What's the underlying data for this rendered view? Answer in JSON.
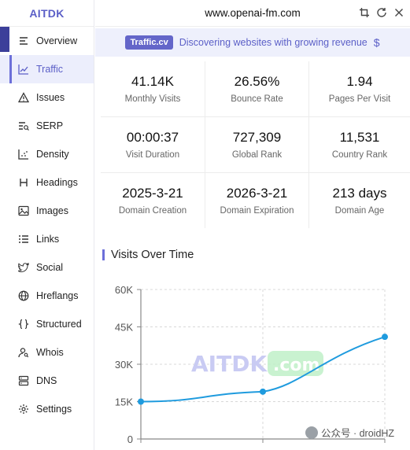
{
  "sidebar": {
    "brand": "AITDK",
    "items": [
      {
        "label": "Overview",
        "icon": "list-icon",
        "active": false
      },
      {
        "label": "Traffic",
        "icon": "chart-line-icon",
        "active": true
      },
      {
        "label": "Issues",
        "icon": "warning-icon",
        "active": false
      },
      {
        "label": "SERP",
        "icon": "serp-list-icon",
        "active": false
      },
      {
        "label": "Density",
        "icon": "density-chart-icon",
        "active": false
      },
      {
        "label": "Headings",
        "icon": "heading-icon",
        "active": false
      },
      {
        "label": "Images",
        "icon": "image-icon",
        "active": false
      },
      {
        "label": "Links",
        "icon": "links-list-icon",
        "active": false
      },
      {
        "label": "Social",
        "icon": "twitter-icon",
        "active": false
      },
      {
        "label": "Hreflangs",
        "icon": "globe-icon",
        "active": false
      },
      {
        "label": "Structured",
        "icon": "braces-icon",
        "active": false
      },
      {
        "label": "Whois",
        "icon": "user-search-icon",
        "active": false
      },
      {
        "label": "DNS",
        "icon": "server-icon",
        "active": false
      },
      {
        "label": "Settings",
        "icon": "gear-icon",
        "active": false
      }
    ]
  },
  "header": {
    "url": "www.openai-fm.com"
  },
  "banner": {
    "badge": "Traffic.cv",
    "text": "Discovering websites with growing revenue",
    "symbol": "$"
  },
  "stats": [
    {
      "value": "41.14K",
      "label": "Monthly Visits"
    },
    {
      "value": "26.56%",
      "label": "Bounce Rate"
    },
    {
      "value": "1.94",
      "label": "Pages Per Visit"
    },
    {
      "value": "00:00:37",
      "label": "Visit Duration"
    },
    {
      "value": "727,309",
      "label": "Global Rank"
    },
    {
      "value": "11,531",
      "label": "Country Rank"
    },
    {
      "value": "2025-3-21",
      "label": "Domain Creation"
    },
    {
      "value": "2026-3-21",
      "label": "Domain Expiration"
    },
    {
      "value": "213 days",
      "label": "Domain Age"
    }
  ],
  "chart": {
    "title": "Visits Over Time",
    "watermark": "AITDK",
    "watermark_badge": ".com"
  },
  "chart_data": {
    "type": "line",
    "title": "Visits Over Time",
    "xlabel": "",
    "ylabel": "",
    "y_ticks": [
      "60K",
      "45K",
      "30K",
      "15K",
      "0"
    ],
    "ylim": [
      0,
      60000
    ],
    "x_points": 3,
    "grid": true,
    "series": [
      {
        "values": [
          15000,
          19000,
          41000
        ],
        "color": "#1f9bde"
      }
    ]
  },
  "footer": {
    "watermark": "公众号 · droidHZ"
  }
}
